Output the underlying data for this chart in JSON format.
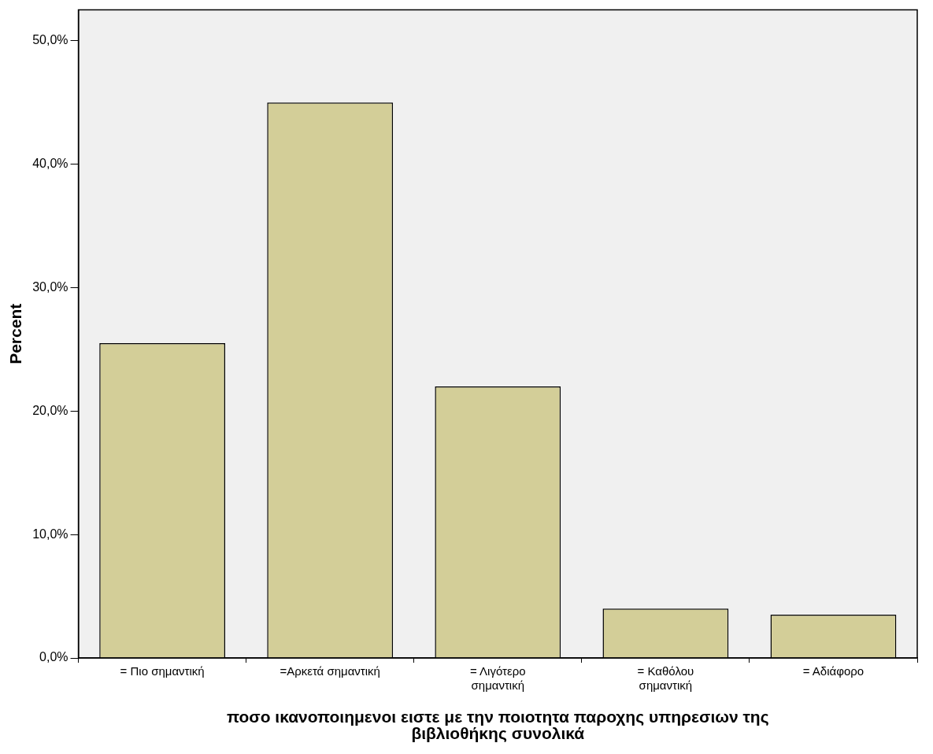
{
  "chart_data": {
    "type": "bar",
    "xlabel": "ποσο ικανοποιημενοι ειστε με την ποιοτητα παροχης υπηρεσιων της βιβλιοθήκης συνολικά",
    "ylabel": "Percent",
    "categories": [
      "= Πιο σημαντική",
      "=Αρκετά σημαντική",
      "= Λιγότερο σημαντική",
      "= Καθόλου σημαντική",
      "= Αδιάφορο"
    ],
    "values": [
      25.5,
      45.0,
      22.0,
      4.0,
      3.5
    ],
    "color": "#d3ce98",
    "ylim": [
      0,
      52.5
    ],
    "yticks": [
      {
        "value": 0,
        "label": "0,0%"
      },
      {
        "value": 10,
        "label": "10,0%"
      },
      {
        "value": 20,
        "label": "20,0%"
      },
      {
        "value": 30,
        "label": "30,0%"
      },
      {
        "value": 40,
        "label": "40,0%"
      },
      {
        "value": 50,
        "label": "50,0%"
      }
    ],
    "grid": false,
    "legend": false
  }
}
